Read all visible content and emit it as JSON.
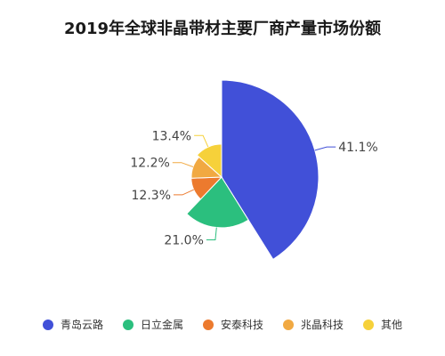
{
  "chart_data": {
    "type": "pie",
    "variant": "rose",
    "title": "2019年全球非晶带材主要厂商产量市场份额",
    "categories": [
      "青岛云路",
      "日立金属",
      "安泰科技",
      "兆晶科技",
      "其他"
    ],
    "values": [
      41.1,
      21.0,
      12.3,
      12.2,
      13.4
    ],
    "value_labels": [
      "41.1%",
      "21.0%",
      "12.3%",
      "12.2%",
      "13.4%"
    ],
    "colors": [
      "#4150d8",
      "#2bbf7e",
      "#ec7a2e",
      "#f1a942",
      "#f6d13a"
    ],
    "legend_position": "bottom"
  }
}
